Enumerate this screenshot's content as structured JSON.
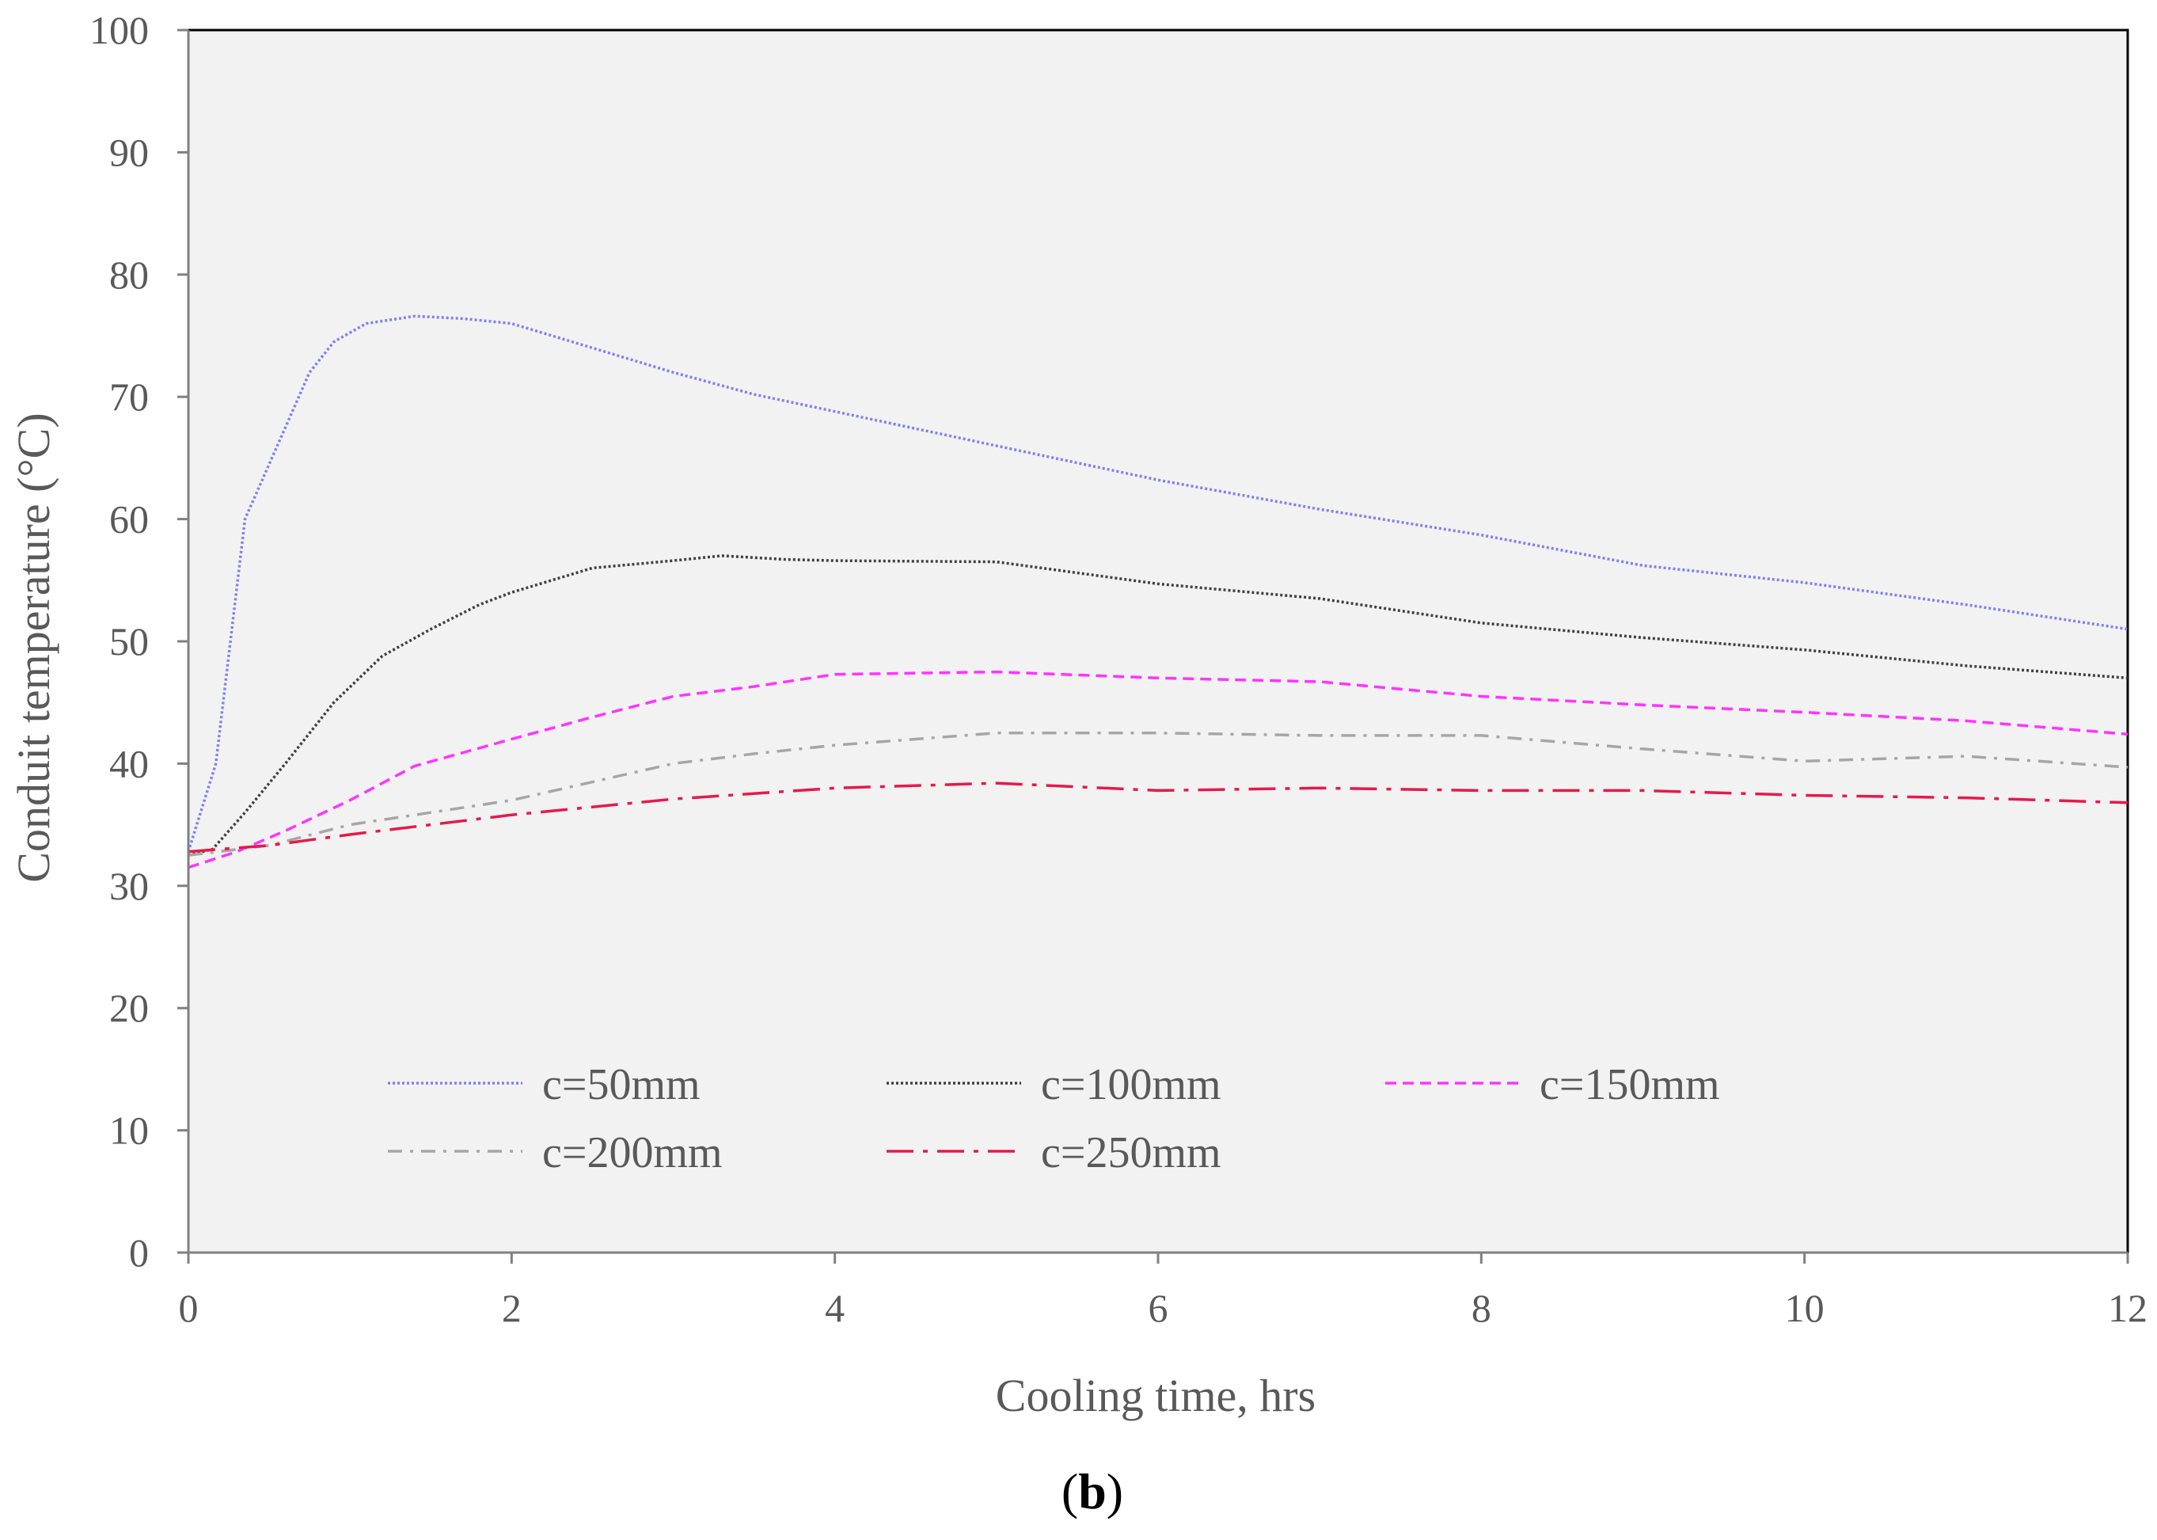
{
  "chart_data": {
    "type": "line",
    "panel_label": {
      "open": "(",
      "letter": "b",
      "close": ")"
    },
    "xlabel": "Cooling time, hrs",
    "ylabel": "Conduit temperature (°C)",
    "xlim": [
      0,
      12
    ],
    "ylim": [
      0,
      100
    ],
    "xticks": [
      0,
      2,
      4,
      6,
      8,
      10,
      12
    ],
    "yticks": [
      0,
      10,
      20,
      30,
      40,
      50,
      60,
      70,
      80,
      90,
      100
    ],
    "grid": false,
    "plot_background": "#f2f2f2",
    "legend_position": "bottom-left inside",
    "series": [
      {
        "name": "c=50mm",
        "color": "#8080f0",
        "dash": "dotted",
        "x": [
          0,
          0.17,
          0.35,
          0.55,
          0.75,
          0.9,
          1.1,
          1.4,
          1.7,
          2.0,
          2.5,
          3.0,
          3.5,
          4.0,
          5.0,
          6.0,
          7.0,
          8.0,
          9.0,
          10.0,
          11.0,
          12.0
        ],
        "y": [
          32.8,
          40,
          60,
          66,
          72,
          74.5,
          76,
          76.6,
          76.4,
          76,
          74,
          72,
          70.2,
          68.8,
          66,
          63.2,
          60.8,
          58.7,
          56.2,
          54.8,
          53,
          51
        ]
      },
      {
        "name": "c=100mm",
        "color": "#404040",
        "dash": "dotted",
        "x": [
          0,
          0.15,
          0.35,
          0.6,
          0.9,
          1.2,
          1.5,
          1.8,
          2.0,
          2.5,
          3.0,
          3.3,
          3.7,
          4.0,
          5.0,
          6.0,
          7.0,
          8.0,
          9.0,
          10.0,
          11.0,
          12.0
        ],
        "y": [
          32.5,
          33,
          36,
          40,
          45,
          48.8,
          51,
          53,
          54,
          56,
          56.6,
          57,
          56.7,
          56.6,
          56.5,
          54.7,
          53.5,
          51.5,
          50.3,
          49.3,
          48,
          47
        ]
      },
      {
        "name": "c=150mm",
        "color": "#ff33ff",
        "dash": "dashed",
        "x": [
          0,
          0.3,
          0.6,
          1.0,
          1.4,
          2.0,
          2.5,
          3.0,
          3.5,
          4.0,
          5.0,
          6.0,
          7.0,
          8.0,
          9.0,
          10.0,
          11.0,
          12.0
        ],
        "y": [
          31.5,
          32.8,
          34.5,
          37,
          39.8,
          42,
          43.8,
          45.5,
          46.3,
          47.3,
          47.5,
          47,
          46.7,
          45.5,
          44.8,
          44.2,
          43.5,
          42.4
        ]
      },
      {
        "name": "c=200mm",
        "color": "#a6a6a6",
        "dash": "dash-dot",
        "x": [
          0,
          0.5,
          1.0,
          1.5,
          2.0,
          2.5,
          3.0,
          3.5,
          4.0,
          4.5,
          5.0,
          6.0,
          7.0,
          8.0,
          9.0,
          10.0,
          11.0,
          12.0
        ],
        "y": [
          32.5,
          33.3,
          35,
          36,
          37,
          38.5,
          40,
          40.8,
          41.5,
          42,
          42.5,
          42.5,
          42.3,
          42.3,
          41.2,
          40.2,
          40.6,
          39.7
        ]
      },
      {
        "name": "c=250mm",
        "color": "#e6194b",
        "dash": "long-dash-dot",
        "x": [
          0,
          0.5,
          1.0,
          1.5,
          2.0,
          3.0,
          4.0,
          5.0,
          6.0,
          7.0,
          8.0,
          9.0,
          10.0,
          11.0,
          12.0
        ],
        "y": [
          32.8,
          33.3,
          34.2,
          35,
          35.8,
          37.1,
          38,
          38.4,
          37.8,
          38,
          37.8,
          37.8,
          37.4,
          37.2,
          36.8
        ]
      }
    ]
  }
}
